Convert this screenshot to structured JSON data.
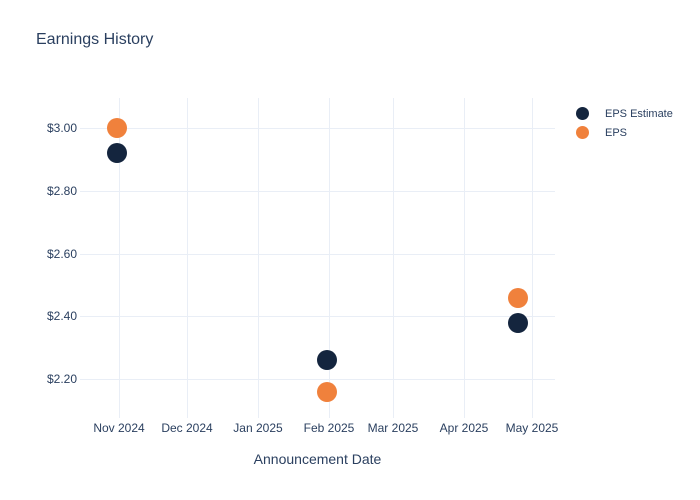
{
  "colors": {
    "background": "#ffffff",
    "text": "#2a3f5f",
    "grid": "#e9eef6",
    "eps_estimate": "#14253e",
    "eps": "#f0813c"
  },
  "chart_data": {
    "type": "scatter",
    "title": "Earnings History",
    "xlabel": "Announcement Date",
    "ylabel": "",
    "grid": true,
    "legend_position": "right-outside-top",
    "xlim": [
      "2024-10-15",
      "2025-05-11"
    ],
    "ylim": [
      2.076,
      3.097
    ],
    "x_ticks": [
      {
        "date": "2024-11-01",
        "label": "Nov 2024"
      },
      {
        "date": "2024-12-01",
        "label": "Dec 2024"
      },
      {
        "date": "2025-01-01",
        "label": "Jan 2025"
      },
      {
        "date": "2025-02-01",
        "label": "Feb 2025"
      },
      {
        "date": "2025-03-01",
        "label": "Mar 2025"
      },
      {
        "date": "2025-04-01",
        "label": "Apr 2025"
      },
      {
        "date": "2025-05-01",
        "label": "May 2025"
      }
    ],
    "y_ticks": [
      {
        "value": 3.0,
        "label": "$3.00"
      },
      {
        "value": 2.8,
        "label": "$2.80"
      },
      {
        "value": 2.6,
        "label": "$2.60"
      },
      {
        "value": 2.4,
        "label": "$2.40"
      },
      {
        "value": 2.2,
        "label": "$2.20"
      }
    ],
    "series": [
      {
        "name": "EPS Estimate",
        "color": "#14253e",
        "points": [
          {
            "x": "2024-10-31",
            "y": 2.92
          },
          {
            "x": "2025-01-31",
            "y": 2.26
          },
          {
            "x": "2025-04-25",
            "y": 2.38
          }
        ]
      },
      {
        "name": "EPS",
        "color": "#f0813c",
        "points": [
          {
            "x": "2024-10-31",
            "y": 3.0
          },
          {
            "x": "2025-01-31",
            "y": 2.16
          },
          {
            "x": "2025-04-25",
            "y": 2.46
          }
        ]
      }
    ]
  }
}
